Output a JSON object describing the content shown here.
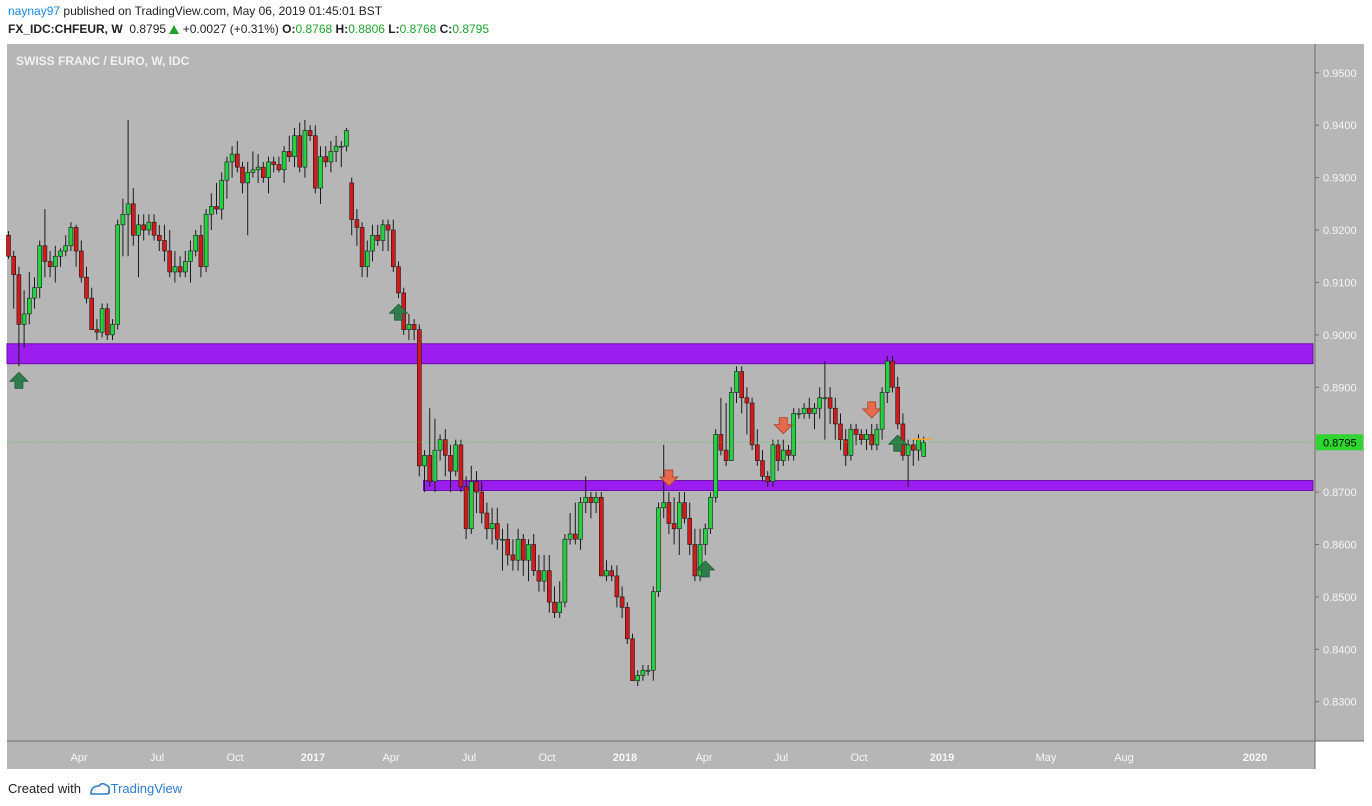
{
  "header": {
    "username": "naynay97",
    "published_text": "published on TradingView.com, May 06, 2019 01:45:01 BST",
    "symbol": "FX_IDC:CHFEUR, W",
    "last": "0.8795",
    "change": "+0.0027 (+0.31%)",
    "o_label": "O:",
    "o_value": "0.8768",
    "h_label": "H:",
    "h_value": "0.8806",
    "l_label": "L:",
    "l_value": "0.8768",
    "c_label": "C:",
    "c_value": "0.8795"
  },
  "footer": {
    "created_with": "Created with",
    "brand": "TradingView"
  },
  "colors": {
    "background": "#b6b6b6",
    "up": "#21d33f",
    "down": "#d11a1a",
    "zone": "#9b1df0",
    "up_arrow": "#2f7d4b",
    "down_arrow": "#e8694b",
    "price_line": "#2fd62f"
  },
  "chart_data": {
    "type": "candlestick",
    "title": "SWISS FRANC / EURO, W, IDC",
    "ylim": [
      0.8225,
      0.9555
    ],
    "y_ticks": [
      "0.9500",
      "0.9400",
      "0.9300",
      "0.9200",
      "0.9100",
      "0.9000",
      "0.8900",
      "0.8795",
      "0.8700",
      "0.8600",
      "0.8500",
      "0.8400",
      "0.8300"
    ],
    "x_ticks": [
      "Apr",
      "Jul",
      "Oct",
      "2017",
      "Apr",
      "Jul",
      "Oct",
      "2018",
      "Apr",
      "Jul",
      "Oct",
      "2019",
      "May",
      "Aug",
      "2020"
    ],
    "current_price": 0.8795,
    "current_price_label": "0.8795",
    "zones": [
      {
        "name": "resistance",
        "low": 0.8945,
        "high": 0.8983
      },
      {
        "name": "support",
        "low": 0.8703,
        "high": 0.8722
      }
    ],
    "markers": [
      {
        "type": "up",
        "bar": 2
      },
      {
        "type": "up",
        "bar": 75
      },
      {
        "type": "down",
        "bar": 127
      },
      {
        "type": "down",
        "bar": 149
      },
      {
        "type": "up",
        "bar": 134
      },
      {
        "type": "down",
        "bar": 166
      },
      {
        "type": "up",
        "bar": 171
      }
    ],
    "candles": [
      [
        0.919,
        0.9198,
        0.9145,
        0.915
      ],
      [
        0.915,
        0.916,
        0.905,
        0.9115
      ],
      [
        0.9115,
        0.913,
        0.894,
        0.902
      ],
      [
        0.902,
        0.9085,
        0.8975,
        0.904
      ],
      [
        0.904,
        0.912,
        0.902,
        0.907
      ],
      [
        0.907,
        0.911,
        0.905,
        0.909
      ],
      [
        0.909,
        0.918,
        0.907,
        0.917
      ],
      [
        0.917,
        0.924,
        0.911,
        0.914
      ],
      [
        0.914,
        0.916,
        0.911,
        0.913
      ],
      [
        0.913,
        0.917,
        0.91,
        0.915
      ],
      [
        0.915,
        0.9165,
        0.913,
        0.916
      ],
      [
        0.916,
        0.919,
        0.915,
        0.917
      ],
      [
        0.917,
        0.9215,
        0.916,
        0.9205
      ],
      [
        0.9205,
        0.921,
        0.913,
        0.916
      ],
      [
        0.916,
        0.918,
        0.91,
        0.911
      ],
      [
        0.911,
        0.913,
        0.906,
        0.907
      ],
      [
        0.907,
        0.909,
        0.901,
        0.901
      ],
      [
        0.901,
        0.903,
        0.899,
        0.9005
      ],
      [
        0.9005,
        0.906,
        0.8995,
        0.905
      ],
      [
        0.905,
        0.906,
        0.899,
        0.9
      ],
      [
        0.9,
        0.903,
        0.899,
        0.902
      ],
      [
        0.902,
        0.922,
        0.901,
        0.921
      ],
      [
        0.921,
        0.926,
        0.915,
        0.923
      ],
      [
        0.923,
        0.941,
        0.915,
        0.925
      ],
      [
        0.925,
        0.928,
        0.917,
        0.919
      ],
      [
        0.919,
        0.923,
        0.911,
        0.921
      ],
      [
        0.921,
        0.923,
        0.918,
        0.92
      ],
      [
        0.92,
        0.923,
        0.919,
        0.9215
      ],
      [
        0.9215,
        0.923,
        0.918,
        0.919
      ],
      [
        0.919,
        0.921,
        0.916,
        0.918
      ],
      [
        0.918,
        0.921,
        0.914,
        0.916
      ],
      [
        0.916,
        0.92,
        0.911,
        0.912
      ],
      [
        0.912,
        0.916,
        0.91,
        0.913
      ],
      [
        0.913,
        0.915,
        0.911,
        0.912
      ],
      [
        0.912,
        0.916,
        0.911,
        0.914
      ],
      [
        0.914,
        0.918,
        0.91,
        0.916
      ],
      [
        0.916,
        0.92,
        0.915,
        0.919
      ],
      [
        0.919,
        0.921,
        0.911,
        0.913
      ],
      [
        0.913,
        0.924,
        0.912,
        0.923
      ],
      [
        0.923,
        0.927,
        0.92,
        0.9245
      ],
      [
        0.9245,
        0.929,
        0.923,
        0.924
      ],
      [
        0.924,
        0.931,
        0.922,
        0.9295
      ],
      [
        0.9295,
        0.934,
        0.926,
        0.933
      ],
      [
        0.933,
        0.936,
        0.93,
        0.9345
      ],
      [
        0.9345,
        0.937,
        0.931,
        0.932
      ],
      [
        0.932,
        0.933,
        0.927,
        0.929
      ],
      [
        0.929,
        0.933,
        0.919,
        0.931
      ],
      [
        0.931,
        0.935,
        0.93,
        0.9315
      ],
      [
        0.9315,
        0.9345,
        0.929,
        0.932
      ],
      [
        0.932,
        0.933,
        0.929,
        0.93
      ],
      [
        0.93,
        0.934,
        0.927,
        0.933
      ],
      [
        0.933,
        0.934,
        0.931,
        0.9325
      ],
      [
        0.9325,
        0.934,
        0.931,
        0.9315
      ],
      [
        0.9315,
        0.936,
        0.929,
        0.935
      ],
      [
        0.935,
        0.938,
        0.933,
        0.934
      ],
      [
        0.934,
        0.9395,
        0.932,
        0.938
      ],
      [
        0.938,
        0.9405,
        0.931,
        0.932
      ],
      [
        0.932,
        0.941,
        0.93,
        0.939
      ],
      [
        0.939,
        0.94,
        0.937,
        0.938
      ],
      [
        0.938,
        0.94,
        0.927,
        0.928
      ],
      [
        0.928,
        0.936,
        0.925,
        0.934
      ],
      [
        0.934,
        0.936,
        0.932,
        0.933
      ],
      [
        0.933,
        0.937,
        0.931,
        0.935
      ],
      [
        0.935,
        0.938,
        0.933,
        0.936
      ],
      [
        0.936,
        0.937,
        0.932,
        0.936
      ],
      [
        0.936,
        0.9395,
        0.935,
        0.939
      ],
      [
        0.929,
        0.93,
        0.919,
        0.922
      ],
      [
        0.922,
        0.924,
        0.917,
        0.9205
      ],
      [
        0.9205,
        0.9215,
        0.911,
        0.913
      ],
      [
        0.913,
        0.918,
        0.911,
        0.916
      ],
      [
        0.916,
        0.921,
        0.914,
        0.919
      ],
      [
        0.919,
        0.921,
        0.917,
        0.918
      ],
      [
        0.918,
        0.922,
        0.916,
        0.921
      ],
      [
        0.921,
        0.922,
        0.916,
        0.92
      ],
      [
        0.92,
        0.922,
        0.912,
        0.913
      ],
      [
        0.913,
        0.914,
        0.907,
        0.908
      ],
      [
        0.908,
        0.909,
        0.9,
        0.901
      ],
      [
        0.901,
        0.904,
        0.899,
        0.902
      ],
      [
        0.902,
        0.903,
        0.899,
        0.901
      ],
      [
        0.901,
        0.902,
        0.873,
        0.875
      ],
      [
        0.875,
        0.878,
        0.87,
        0.877
      ],
      [
        0.877,
        0.886,
        0.871,
        0.872
      ],
      [
        0.872,
        0.884,
        0.87,
        0.878
      ],
      [
        0.878,
        0.881,
        0.876,
        0.88
      ],
      [
        0.88,
        0.882,
        0.873,
        0.877
      ],
      [
        0.877,
        0.879,
        0.87,
        0.874
      ],
      [
        0.874,
        0.88,
        0.873,
        0.879
      ],
      [
        0.879,
        0.88,
        0.87,
        0.871
      ],
      [
        0.871,
        0.873,
        0.861,
        0.863
      ],
      [
        0.863,
        0.875,
        0.862,
        0.872
      ],
      [
        0.872,
        0.874,
        0.866,
        0.87
      ],
      [
        0.87,
        0.872,
        0.864,
        0.866
      ],
      [
        0.866,
        0.868,
        0.861,
        0.863
      ],
      [
        0.863,
        0.867,
        0.86,
        0.864
      ],
      [
        0.864,
        0.867,
        0.859,
        0.861
      ],
      [
        0.861,
        0.863,
        0.855,
        0.861
      ],
      [
        0.861,
        0.864,
        0.856,
        0.858
      ],
      [
        0.858,
        0.861,
        0.855,
        0.857
      ],
      [
        0.857,
        0.863,
        0.855,
        0.861
      ],
      [
        0.861,
        0.862,
        0.854,
        0.857
      ],
      [
        0.857,
        0.861,
        0.853,
        0.86
      ],
      [
        0.86,
        0.862,
        0.854,
        0.855
      ],
      [
        0.855,
        0.858,
        0.851,
        0.853
      ],
      [
        0.853,
        0.858,
        0.851,
        0.855
      ],
      [
        0.855,
        0.858,
        0.847,
        0.849
      ],
      [
        0.849,
        0.852,
        0.846,
        0.847
      ],
      [
        0.847,
        0.853,
        0.846,
        0.849
      ],
      [
        0.849,
        0.862,
        0.848,
        0.861
      ],
      [
        0.861,
        0.866,
        0.86,
        0.862
      ],
      [
        0.862,
        0.868,
        0.86,
        0.861
      ],
      [
        0.861,
        0.869,
        0.859,
        0.868
      ],
      [
        0.868,
        0.873,
        0.866,
        0.869
      ],
      [
        0.869,
        0.87,
        0.865,
        0.868
      ],
      [
        0.868,
        0.87,
        0.866,
        0.869
      ],
      [
        0.869,
        0.87,
        0.854,
        0.854
      ],
      [
        0.854,
        0.857,
        0.853,
        0.855
      ],
      [
        0.855,
        0.856,
        0.853,
        0.854
      ],
      [
        0.854,
        0.856,
        0.848,
        0.85
      ],
      [
        0.85,
        0.852,
        0.846,
        0.848
      ],
      [
        0.848,
        0.849,
        0.841,
        0.842
      ],
      [
        0.842,
        0.843,
        0.834,
        0.834
      ],
      [
        0.834,
        0.836,
        0.833,
        0.835
      ],
      [
        0.835,
        0.837,
        0.834,
        0.836
      ],
      [
        0.836,
        0.837,
        0.835,
        0.836
      ],
      [
        0.836,
        0.852,
        0.834,
        0.851
      ],
      [
        0.851,
        0.868,
        0.85,
        0.867
      ],
      [
        0.867,
        0.879,
        0.865,
        0.868
      ],
      [
        0.868,
        0.87,
        0.862,
        0.864
      ],
      [
        0.864,
        0.869,
        0.86,
        0.863
      ],
      [
        0.863,
        0.87,
        0.858,
        0.868
      ],
      [
        0.868,
        0.87,
        0.864,
        0.865
      ],
      [
        0.865,
        0.868,
        0.858,
        0.86
      ],
      [
        0.86,
        0.863,
        0.853,
        0.854
      ],
      [
        0.854,
        0.863,
        0.853,
        0.86
      ],
      [
        0.86,
        0.864,
        0.858,
        0.863
      ],
      [
        0.863,
        0.87,
        0.862,
        0.869
      ],
      [
        0.869,
        0.882,
        0.868,
        0.881
      ],
      [
        0.881,
        0.888,
        0.877,
        0.878
      ],
      [
        0.878,
        0.887,
        0.875,
        0.876
      ],
      [
        0.876,
        0.89,
        0.876,
        0.889
      ],
      [
        0.889,
        0.894,
        0.887,
        0.893
      ],
      [
        0.893,
        0.894,
        0.885,
        0.888
      ],
      [
        0.888,
        0.89,
        0.881,
        0.887
      ],
      [
        0.887,
        0.888,
        0.878,
        0.879
      ],
      [
        0.879,
        0.882,
        0.875,
        0.876
      ],
      [
        0.876,
        0.878,
        0.872,
        0.873
      ],
      [
        0.873,
        0.874,
        0.871,
        0.872
      ],
      [
        0.872,
        0.88,
        0.871,
        0.879
      ],
      [
        0.879,
        0.88,
        0.874,
        0.876
      ],
      [
        0.876,
        0.88,
        0.875,
        0.878
      ],
      [
        0.878,
        0.879,
        0.876,
        0.877
      ],
      [
        0.877,
        0.886,
        0.876,
        0.885
      ],
      [
        0.885,
        0.886,
        0.884,
        0.885
      ],
      [
        0.885,
        0.887,
        0.884,
        0.886
      ],
      [
        0.886,
        0.888,
        0.884,
        0.885
      ],
      [
        0.885,
        0.887,
        0.882,
        0.886
      ],
      [
        0.886,
        0.89,
        0.884,
        0.888
      ],
      [
        0.888,
        0.895,
        0.88,
        0.888
      ],
      [
        0.888,
        0.89,
        0.883,
        0.886
      ],
      [
        0.886,
        0.888,
        0.88,
        0.883
      ],
      [
        0.883,
        0.885,
        0.878,
        0.88
      ],
      [
        0.88,
        0.882,
        0.875,
        0.877
      ],
      [
        0.877,
        0.883,
        0.876,
        0.882
      ],
      [
        0.882,
        0.883,
        0.879,
        0.881
      ],
      [
        0.881,
        0.882,
        0.879,
        0.88
      ],
      [
        0.88,
        0.882,
        0.878,
        0.881
      ],
      [
        0.881,
        0.883,
        0.878,
        0.879
      ],
      [
        0.879,
        0.883,
        0.878,
        0.882
      ],
      [
        0.882,
        0.89,
        0.88,
        0.889
      ],
      [
        0.889,
        0.896,
        0.887,
        0.895
      ],
      [
        0.895,
        0.896,
        0.889,
        0.89
      ],
      [
        0.89,
        0.892,
        0.882,
        0.883
      ],
      [
        0.883,
        0.885,
        0.876,
        0.877
      ],
      [
        0.877,
        0.88,
        0.871,
        0.879
      ],
      [
        0.879,
        0.88,
        0.875,
        0.878
      ],
      [
        0.878,
        0.881,
        0.876,
        0.88
      ],
      [
        0.8768,
        0.8806,
        0.8768,
        0.8795
      ]
    ]
  }
}
